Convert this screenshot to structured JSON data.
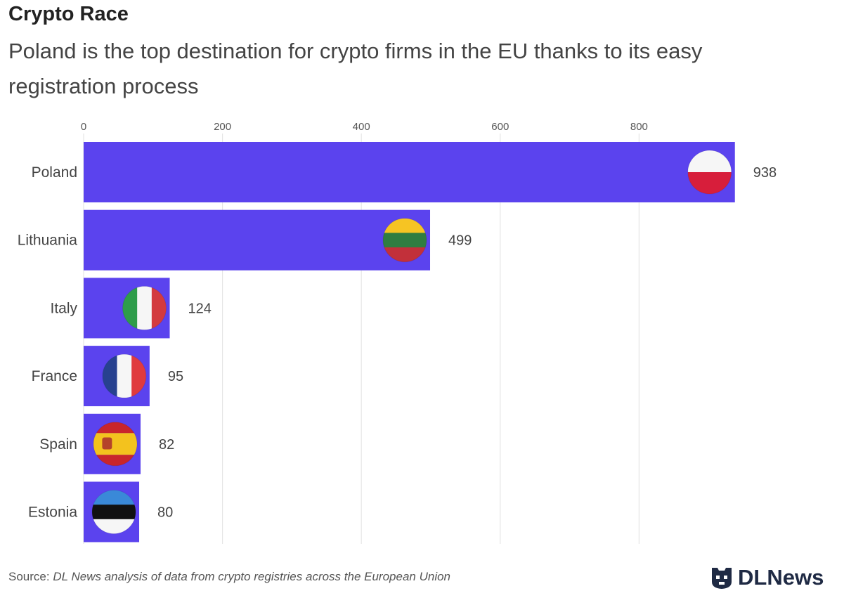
{
  "title": "Crypto Race",
  "subtitle": "Poland is the top destination for crypto firms in the EU thanks to its easy registration process",
  "source_prefix": "Source:",
  "source_text": "DL News analysis of data from crypto registries across the European Union",
  "logo_text": "DLNews",
  "chart_data": {
    "type": "bar",
    "orientation": "horizontal",
    "categories": [
      "Poland",
      "Lithuania",
      "Italy",
      "France",
      "Spain",
      "Estonia"
    ],
    "values": [
      938,
      499,
      124,
      95,
      82,
      80
    ],
    "xticks": [
      0,
      200,
      400,
      600,
      800
    ],
    "xlim": [
      0,
      950
    ],
    "xaxis_position": "top",
    "grid": true,
    "bar_color": "#5b43ee",
    "flags": [
      "poland-flag",
      "lithuania-flag",
      "italy-flag",
      "france-flag",
      "spain-flag",
      "estonia-flag"
    ]
  }
}
